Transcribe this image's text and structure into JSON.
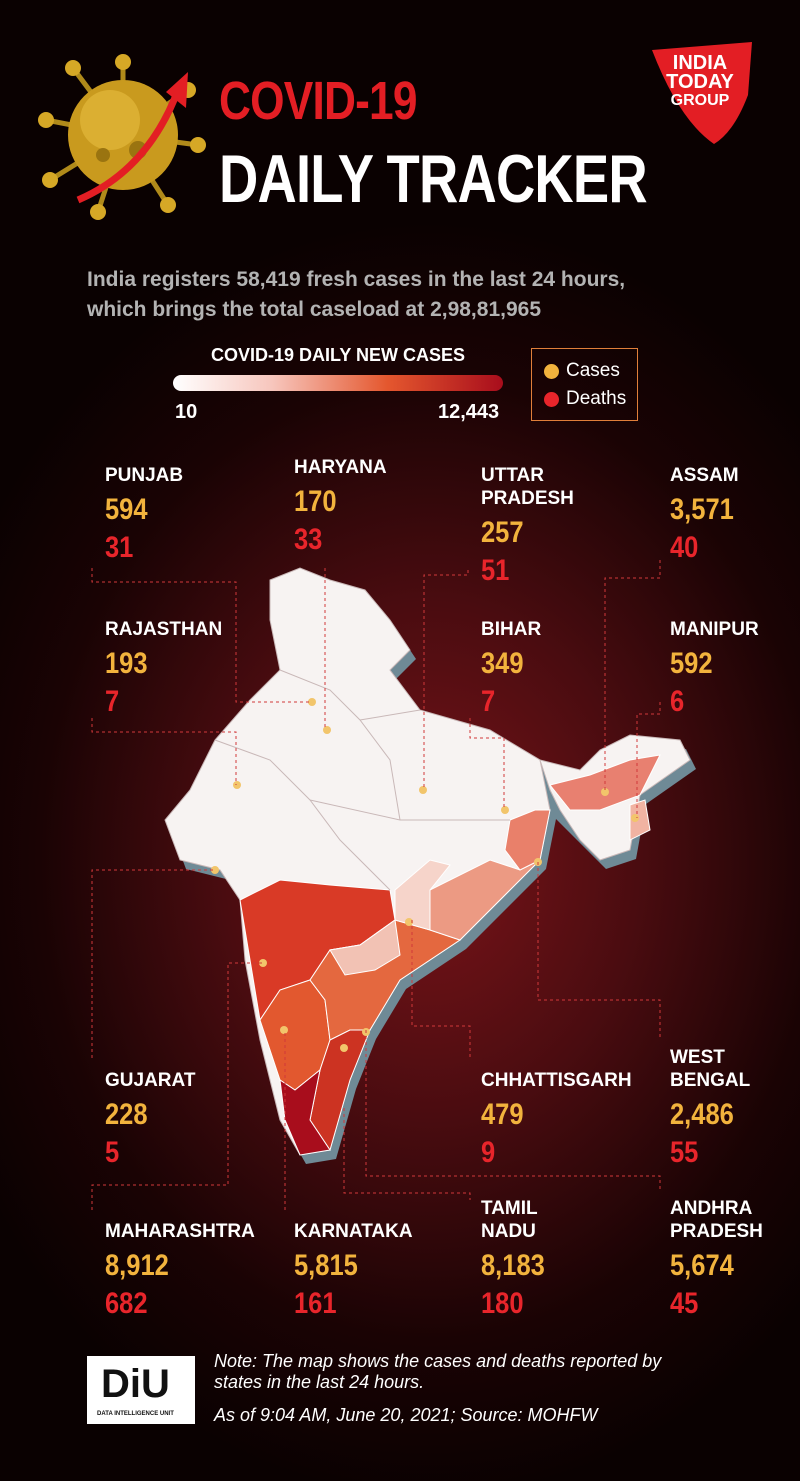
{
  "header": {
    "title_line1": "COVID-19",
    "title_line2": "DAILY TRACKER",
    "subtitle_line1": "India registers 58,419 fresh cases in the last 24 hours,",
    "subtitle_line2": "which brings the total caseload at 2,98,81,965"
  },
  "logo": {
    "line1": "INDIA",
    "line2": "TODAY",
    "line3": "GROUP",
    "color": "#e31e24"
  },
  "color_scale": {
    "title": "COVID-19 DAILY NEW CASES",
    "min_label": "10",
    "max_label": "12,443",
    "colors": [
      "#ffffff",
      "#f7c6bd",
      "#e4572e",
      "#a80d1c"
    ]
  },
  "legend": {
    "items": [
      {
        "label": "Cases",
        "color": "#f2b33d"
      },
      {
        "label": "Deaths",
        "color": "#e8252b"
      }
    ]
  },
  "states": [
    {
      "name": "PUNJAB",
      "cases": "594",
      "deaths": "31"
    },
    {
      "name": "HARYANA",
      "cases": "170",
      "deaths": "33"
    },
    {
      "name": "UTTAR PRADESH",
      "name_line1": "UTTAR",
      "name_line2": "PRADESH",
      "cases": "257",
      "deaths": "51"
    },
    {
      "name": "ASSAM",
      "cases": "3,571",
      "deaths": "40"
    },
    {
      "name": "RAJASTHAN",
      "cases": "193",
      "deaths": "7"
    },
    {
      "name": "BIHAR",
      "cases": "349",
      "deaths": "7"
    },
    {
      "name": "MANIPUR",
      "cases": "592",
      "deaths": "6"
    },
    {
      "name": "GUJARAT",
      "cases": "228",
      "deaths": "5"
    },
    {
      "name": "CHHATTISGARH",
      "cases": "479",
      "deaths": "9"
    },
    {
      "name": "WEST BENGAL",
      "name_line1": "WEST",
      "name_line2": "BENGAL",
      "cases": "2,486",
      "deaths": "55"
    },
    {
      "name": "MAHARASHTRA",
      "cases": "8,912",
      "deaths": "682"
    },
    {
      "name": "KARNATAKA",
      "cases": "5,815",
      "deaths": "161"
    },
    {
      "name": "TAMIL NADU",
      "name_line1": "TAMIL",
      "name_line2": "NADU",
      "cases": "8,183",
      "deaths": "180"
    },
    {
      "name": "ANDHRA PRADESH",
      "name_line1": "ANDHRA",
      "name_line2": "PRADESH",
      "cases": "5,674",
      "deaths": "45"
    }
  ],
  "footer": {
    "diu_logo": "DiU",
    "diu_subtitle": "DATA INTELLIGENCE UNIT",
    "note_line1": "Note: The map shows the cases and deaths reported by",
    "note_line2": "states in the last 24 hours.",
    "as_of": "As of 9:04 AM, June 20, 2021; Source: MOHFW"
  }
}
